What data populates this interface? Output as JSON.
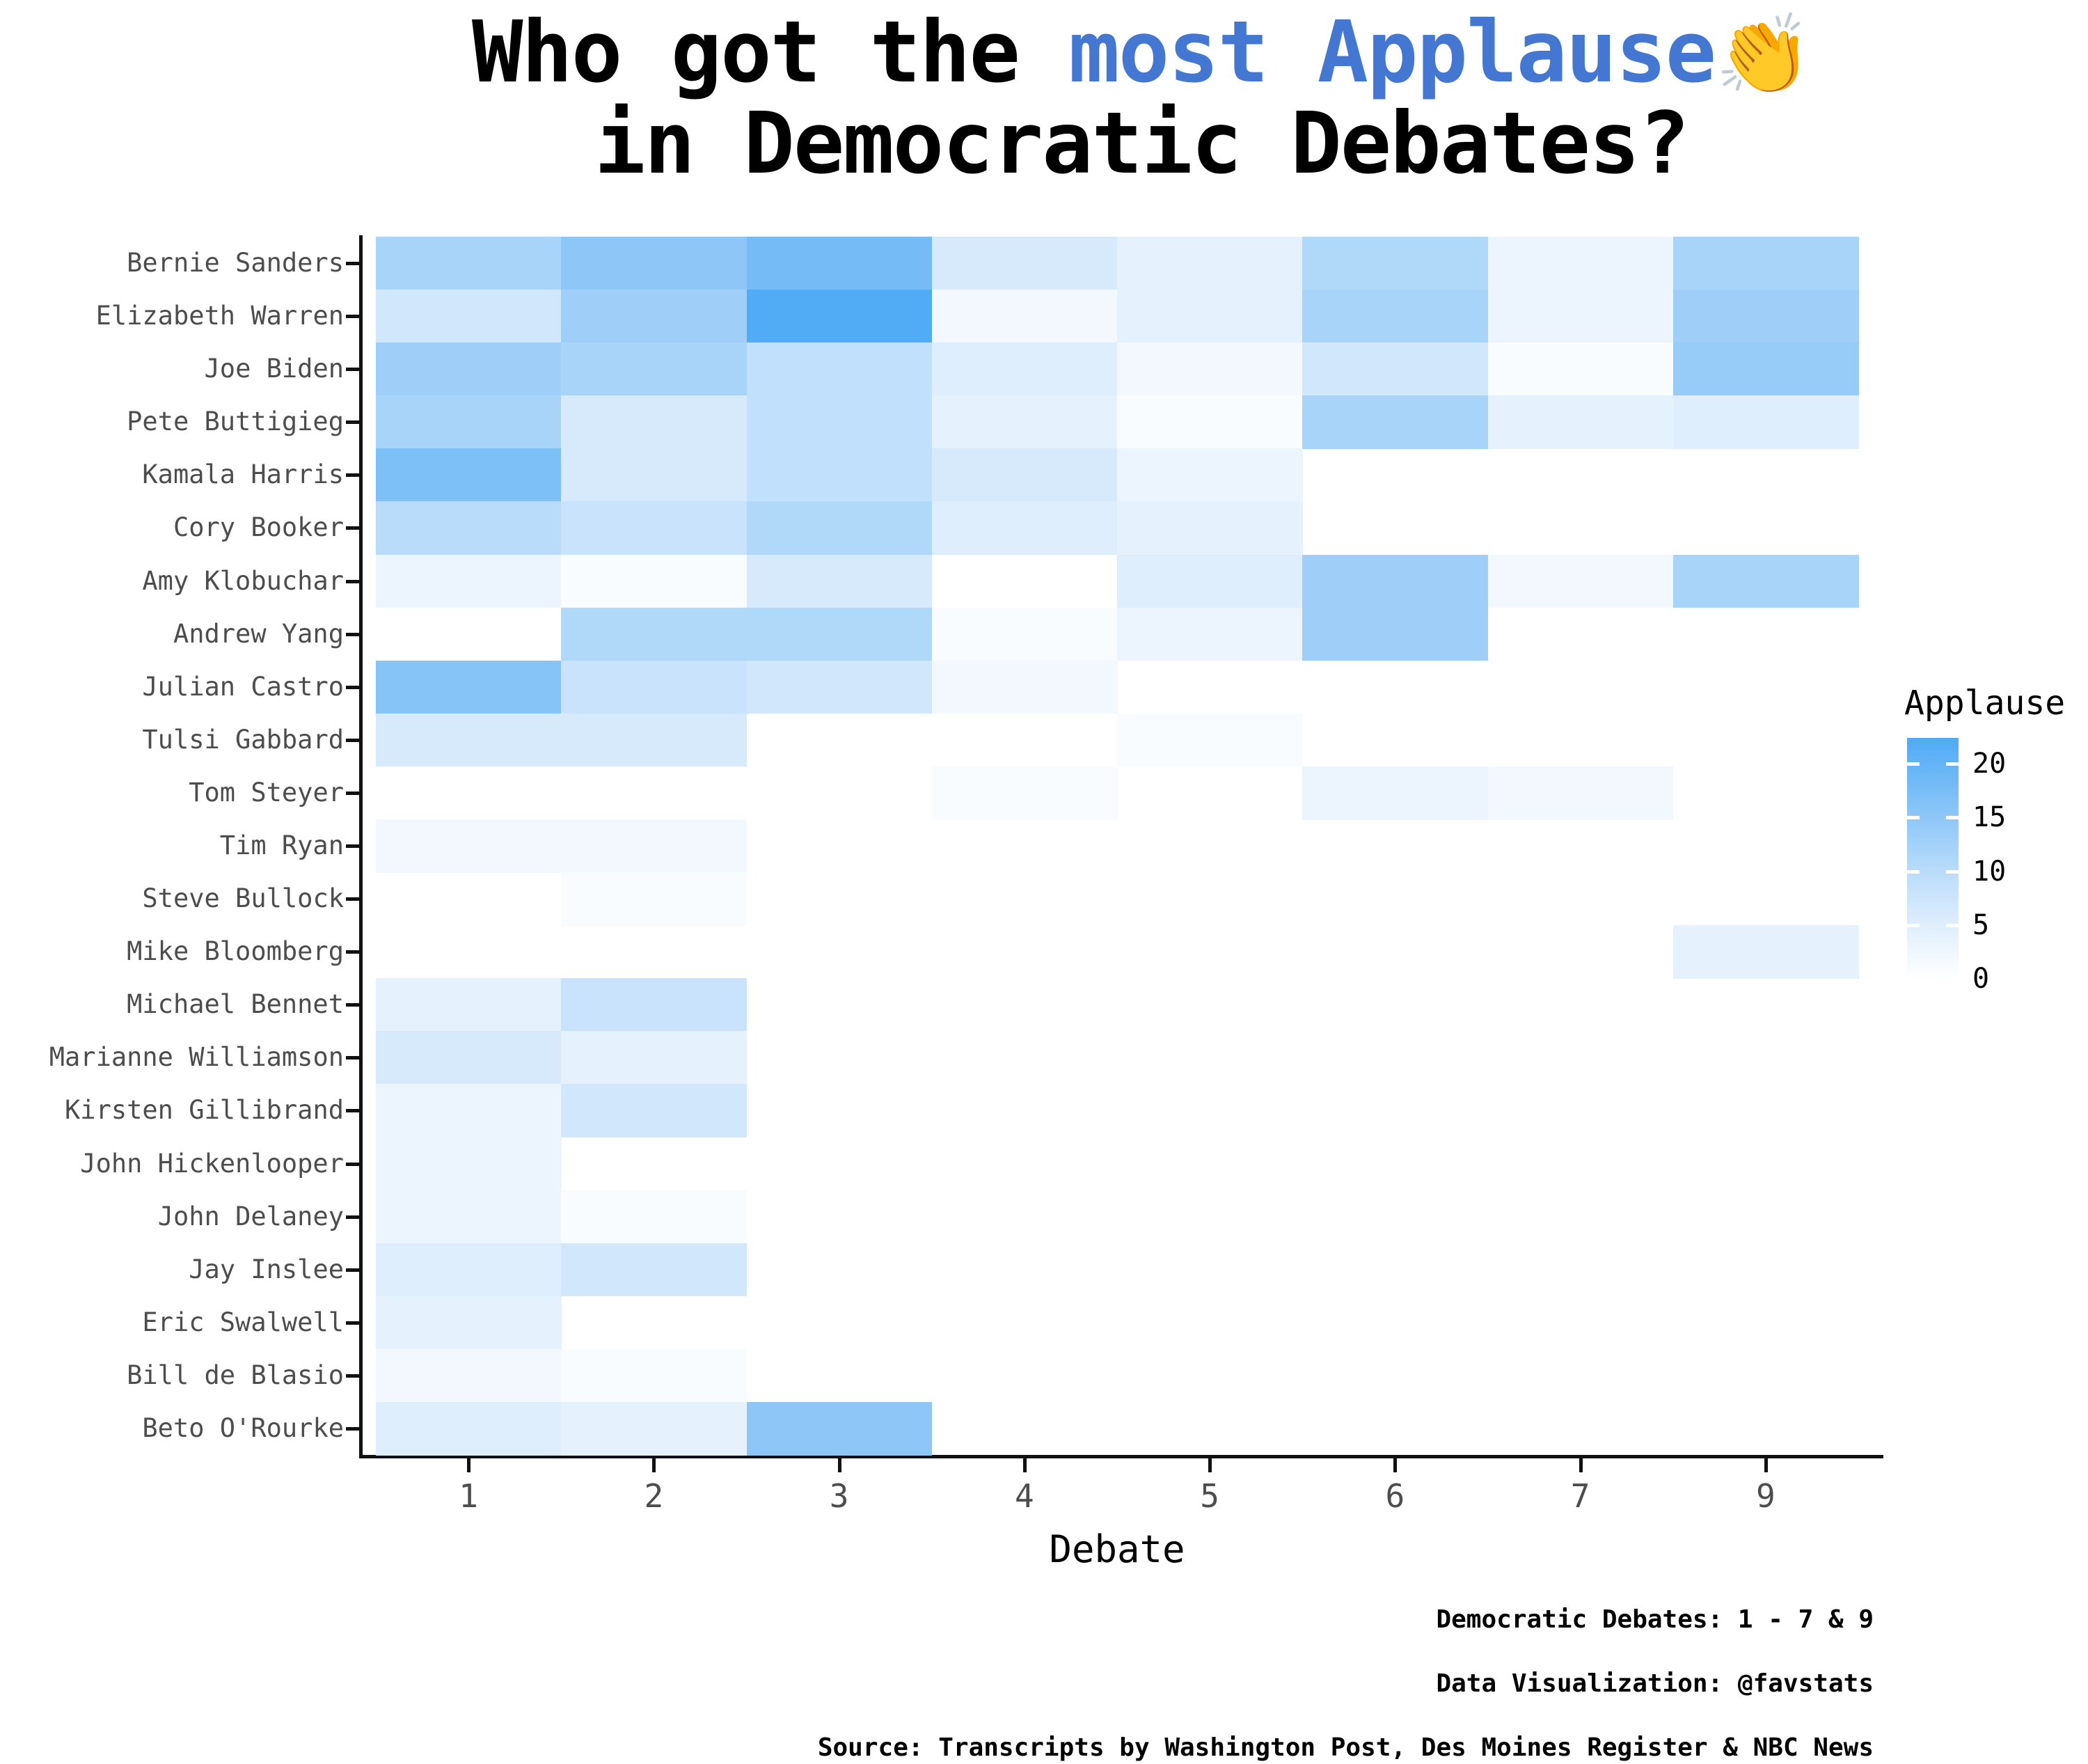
{
  "title": {
    "prefix": "Who got the ",
    "highlight": "most Applause",
    "emoji": "👏",
    "line2": "in Democratic Debates?",
    "highlight_color": "#4377d1"
  },
  "chart_data": {
    "type": "heatmap",
    "title": "Who got the most Applause👏 in Democratic Debates?",
    "xlabel": "Debate",
    "ylabel": "",
    "x_ticks": [
      "1",
      "2",
      "3",
      "4",
      "5",
      "6",
      "7",
      "9"
    ],
    "grid": false,
    "legend_position": "right",
    "legend": {
      "title": "Applause",
      "ticks": [
        20,
        15,
        10,
        5,
        0
      ],
      "max_value": 22.4,
      "gradient_anchors": [
        {
          "v": 0,
          "color": "#ffffff"
        },
        {
          "v": 5,
          "color": "#dfeefd"
        },
        {
          "v": 10,
          "color": "#b9dcfa"
        },
        {
          "v": 15,
          "color": "#8ec7f7"
        },
        {
          "v": 20,
          "color": "#64b4f6"
        },
        {
          "v": 22.4,
          "color": "#4faaf5"
        }
      ]
    },
    "categories": [
      "1",
      "2",
      "3",
      "4",
      "5",
      "6",
      "7",
      "9"
    ],
    "series": [
      {
        "name": "Bernie Sanders",
        "values": [
          12,
          15,
          18,
          6,
          4,
          11,
          3,
          12
        ]
      },
      {
        "name": "Elizabeth Warren",
        "values": [
          7,
          13,
          22,
          2,
          4,
          12,
          3,
          13
        ]
      },
      {
        "name": "Joe Biden",
        "values": [
          13,
          12,
          9,
          5,
          2,
          7,
          1,
          14
        ]
      },
      {
        "name": "Pete Buttigieg",
        "values": [
          12,
          6,
          9,
          4,
          1,
          12,
          4,
          5
        ]
      },
      {
        "name": "Kamala Harris",
        "values": [
          17,
          6,
          9,
          6,
          3,
          null,
          null,
          null
        ]
      },
      {
        "name": "Cory Booker",
        "values": [
          10,
          8,
          11,
          5,
          4,
          null,
          null,
          null
        ]
      },
      {
        "name": "Amy Klobuchar",
        "values": [
          3,
          1,
          6,
          null,
          5,
          13,
          2,
          12
        ]
      },
      {
        "name": "Andrew Yang",
        "values": [
          null,
          11,
          11,
          1,
          3,
          13,
          null,
          null
        ]
      },
      {
        "name": "Julian Castro",
        "values": [
          16,
          8,
          7,
          2,
          null,
          null,
          null,
          null
        ]
      },
      {
        "name": "Tulsi Gabbard",
        "values": [
          6,
          6,
          null,
          null,
          1,
          null,
          null,
          null
        ]
      },
      {
        "name": "Tom Steyer",
        "values": [
          null,
          null,
          null,
          1,
          null,
          3,
          2,
          null
        ]
      },
      {
        "name": "Tim Ryan",
        "values": [
          2,
          2,
          null,
          null,
          null,
          null,
          null,
          null
        ]
      },
      {
        "name": "Steve Bullock",
        "values": [
          null,
          1,
          null,
          null,
          null,
          null,
          null,
          null
        ]
      },
      {
        "name": "Mike Bloomberg",
        "values": [
          null,
          null,
          null,
          null,
          null,
          null,
          null,
          4
        ]
      },
      {
        "name": "Michael Bennet",
        "values": [
          4,
          8,
          null,
          null,
          null,
          null,
          null,
          null
        ]
      },
      {
        "name": "Marianne Williamson",
        "values": [
          6,
          4,
          null,
          null,
          null,
          null,
          null,
          null
        ]
      },
      {
        "name": "Kirsten Gillibrand",
        "values": [
          3,
          7,
          null,
          null,
          null,
          null,
          null,
          null
        ]
      },
      {
        "name": "John Hickenlooper",
        "values": [
          3,
          null,
          null,
          null,
          null,
          null,
          null,
          null
        ]
      },
      {
        "name": "John Delaney",
        "values": [
          3,
          1,
          null,
          null,
          null,
          null,
          null,
          null
        ]
      },
      {
        "name": "Jay Inslee",
        "values": [
          5,
          7,
          null,
          null,
          null,
          null,
          null,
          null
        ]
      },
      {
        "name": "Eric Swalwell",
        "values": [
          4,
          null,
          null,
          null,
          null,
          null,
          null,
          null
        ]
      },
      {
        "name": "Bill de Blasio",
        "values": [
          2,
          1,
          null,
          null,
          null,
          null,
          null,
          null
        ]
      },
      {
        "name": "Beto O'Rourke",
        "values": [
          5,
          4,
          15,
          null,
          null,
          null,
          null,
          null
        ]
      }
    ]
  },
  "caption": {
    "line1": "Democratic Debates: 1 - 7 & 9",
    "line2": "Data Visualization: @favstats",
    "line3": "Source: Transcripts by Washington Post, Des Moines Register & NBC News"
  }
}
